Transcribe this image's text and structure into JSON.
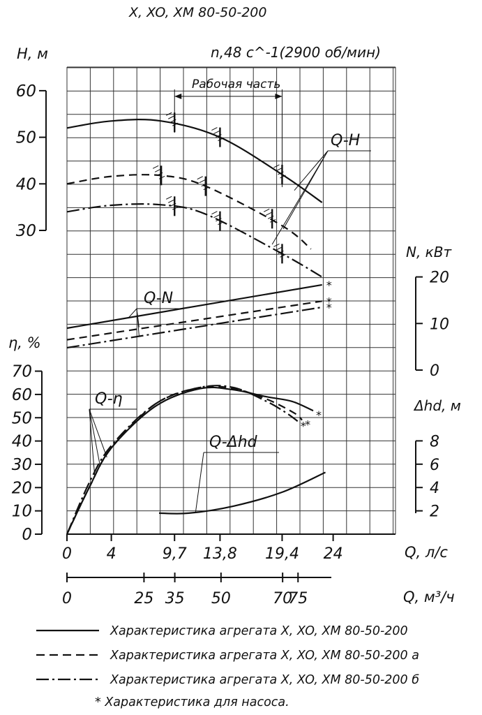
{
  "chart_data": {
    "type": "line",
    "title": "X, XO, XM 80-50-200",
    "subtitle": "n,48 c^-1(2900 об/мин)",
    "xlabel": "Q, л/с",
    "xlabel2": "Q, м³/ч",
    "x_ticks": [
      "0",
      "4",
      "9,7",
      "13,8",
      "19,4",
      "24"
    ],
    "x_ticks_values": [
      0,
      4,
      9.7,
      13.8,
      19.4,
      24
    ],
    "x2_ticks": [
      "0",
      "25",
      "35",
      "50",
      "70",
      "75"
    ],
    "x2_ticks_values": [
      0,
      25,
      35,
      50,
      70,
      75
    ],
    "xlim": [
      0,
      29
    ],
    "working_range": {
      "label": "Рабочая часть",
      "x": [
        9.7,
        19.4
      ]
    },
    "axes": {
      "H": {
        "label": "H, м",
        "ticks": [
          "30",
          "40",
          "50",
          "60"
        ],
        "ticks_values": [
          30,
          40,
          50,
          60
        ]
      },
      "N": {
        "label": "N, кВт",
        "ticks": [
          "0",
          "10",
          "20"
        ],
        "ticks_values": [
          0,
          10,
          20
        ]
      },
      "eta": {
        "label": "η, %",
        "ticks": [
          "0",
          "10",
          "20",
          "30",
          "40",
          "50",
          "60",
          "70"
        ],
        "ticks_values": [
          0,
          10,
          20,
          30,
          40,
          50,
          60,
          70
        ]
      },
      "dhd": {
        "label": "Δhd, м",
        "ticks": [
          "2",
          "4",
          "6",
          "8"
        ],
        "ticks_values": [
          2,
          4,
          6,
          8
        ]
      }
    },
    "curve_labels": {
      "QH": "Q-H",
      "QN": "Q-N",
      "Qeta": "Q-η",
      "Qdhd": "Q-Δhd"
    },
    "star_mark": "*",
    "series": [
      {
        "curve": "QH",
        "style": "solid",
        "x": [
          0,
          4,
          8.5,
          13.8,
          19.4,
          23
        ],
        "values": [
          52,
          53.5,
          53.5,
          50,
          42,
          36
        ]
      },
      {
        "curve": "QH",
        "style": "dashed",
        "x": [
          0,
          4,
          8.5,
          12.5,
          19.4,
          22
        ],
        "values": [
          40,
          41.6,
          41.8,
          39.5,
          31,
          26
        ]
      },
      {
        "curve": "QH",
        "style": "dashdot",
        "x": [
          0,
          4,
          8.5,
          12.5,
          19.4,
          23
        ],
        "values": [
          34,
          35.4,
          35.5,
          33.5,
          25,
          20
        ]
      },
      {
        "curve": "QN",
        "style": "solid",
        "x": [
          0,
          23
        ],
        "values": [
          9,
          18.3
        ]
      },
      {
        "curve": "QN",
        "style": "dashed",
        "x": [
          0,
          23
        ],
        "values": [
          6.5,
          14.8
        ]
      },
      {
        "curve": "QN",
        "style": "dashdot",
        "x": [
          0,
          23
        ],
        "values": [
          4.8,
          13.5
        ]
      },
      {
        "curve": "Qeta",
        "style": "solid",
        "x": [
          0,
          2,
          4,
          8,
          12,
          15,
          18,
          20.3,
          22.2
        ],
        "values": [
          0,
          20,
          37,
          55,
          62.5,
          62,
          59,
          57,
          53
        ]
      },
      {
        "curve": "Qeta",
        "style": "dashed",
        "x": [
          0,
          2,
          4,
          8,
          12,
          15,
          18,
          20.5,
          21.2
        ],
        "values": [
          0,
          20,
          37,
          56,
          63,
          62.5,
          58,
          52,
          49
        ]
      },
      {
        "curve": "Qeta",
        "style": "dashdot",
        "x": [
          0,
          2,
          4,
          8,
          12,
          15,
          18,
          19.8,
          20.8
        ],
        "values": [
          0,
          22,
          38,
          56,
          63,
          63,
          57,
          52,
          48.5
        ]
      },
      {
        "curve": "Qdhd",
        "style": "solid",
        "x": [
          8.3,
          11,
          15,
          19.4,
          23.3
        ],
        "values": [
          1.8,
          1.8,
          2.4,
          3.6,
          5.3
        ]
      }
    ],
    "legend": [
      {
        "style": "solid",
        "text": "Характеристика агрегата X, XO, XM 80-50-200"
      },
      {
        "style": "dashed",
        "text": "Характеристика агрегата X, XO, XM 80-50-200 а"
      },
      {
        "style": "dashdot",
        "text": "Характеристика агрегата X, XO, XM 80-50-200 б"
      }
    ],
    "footnote": "* Характеристика для насоса."
  }
}
